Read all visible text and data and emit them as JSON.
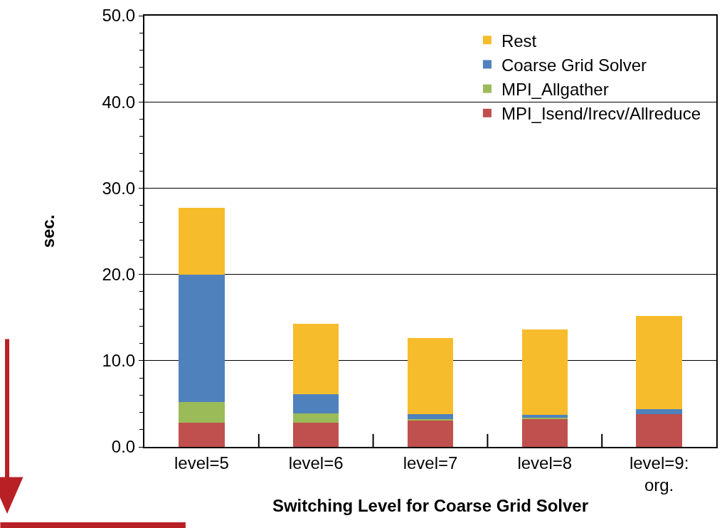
{
  "chart_data": {
    "type": "bar",
    "stacked": true,
    "xlabel": "Switching Level for Coarse Grid Solver",
    "ylabel": "sec.",
    "categories": [
      "level=5",
      "level=6",
      "level=7",
      "level=8",
      "level=9:\norg."
    ],
    "series": [
      {
        "name": "MPI_Isend/Irecv/Allreduce",
        "color": "#c0504d",
        "values": [
          2.8,
          2.8,
          3.1,
          3.2,
          3.8
        ]
      },
      {
        "name": "MPI_Allgather",
        "color": "#9bbb59",
        "values": [
          2.4,
          1.1,
          0.1,
          0.2,
          0
        ]
      },
      {
        "name": "Coarse Grid Solver",
        "color": "#4f81bd",
        "values": [
          14.8,
          2.2,
          0.6,
          0.3,
          0.6
        ]
      },
      {
        "name": "Rest",
        "color": "#f6bc2c",
        "values": [
          7.7,
          8.2,
          8.8,
          9.9,
          10.8
        ]
      }
    ],
    "ylim": [
      0,
      50
    ],
    "yticks": [
      {
        "value": 0,
        "label": "0.0"
      },
      {
        "value": 10,
        "label": "10.0"
      },
      {
        "value": 20,
        "label": "20.0"
      },
      {
        "value": 30,
        "label": "30.0"
      },
      {
        "value": 40,
        "label": "40.0"
      },
      {
        "value": 50,
        "label": "50.0"
      }
    ],
    "grid": "y",
    "legend": "top right"
  }
}
